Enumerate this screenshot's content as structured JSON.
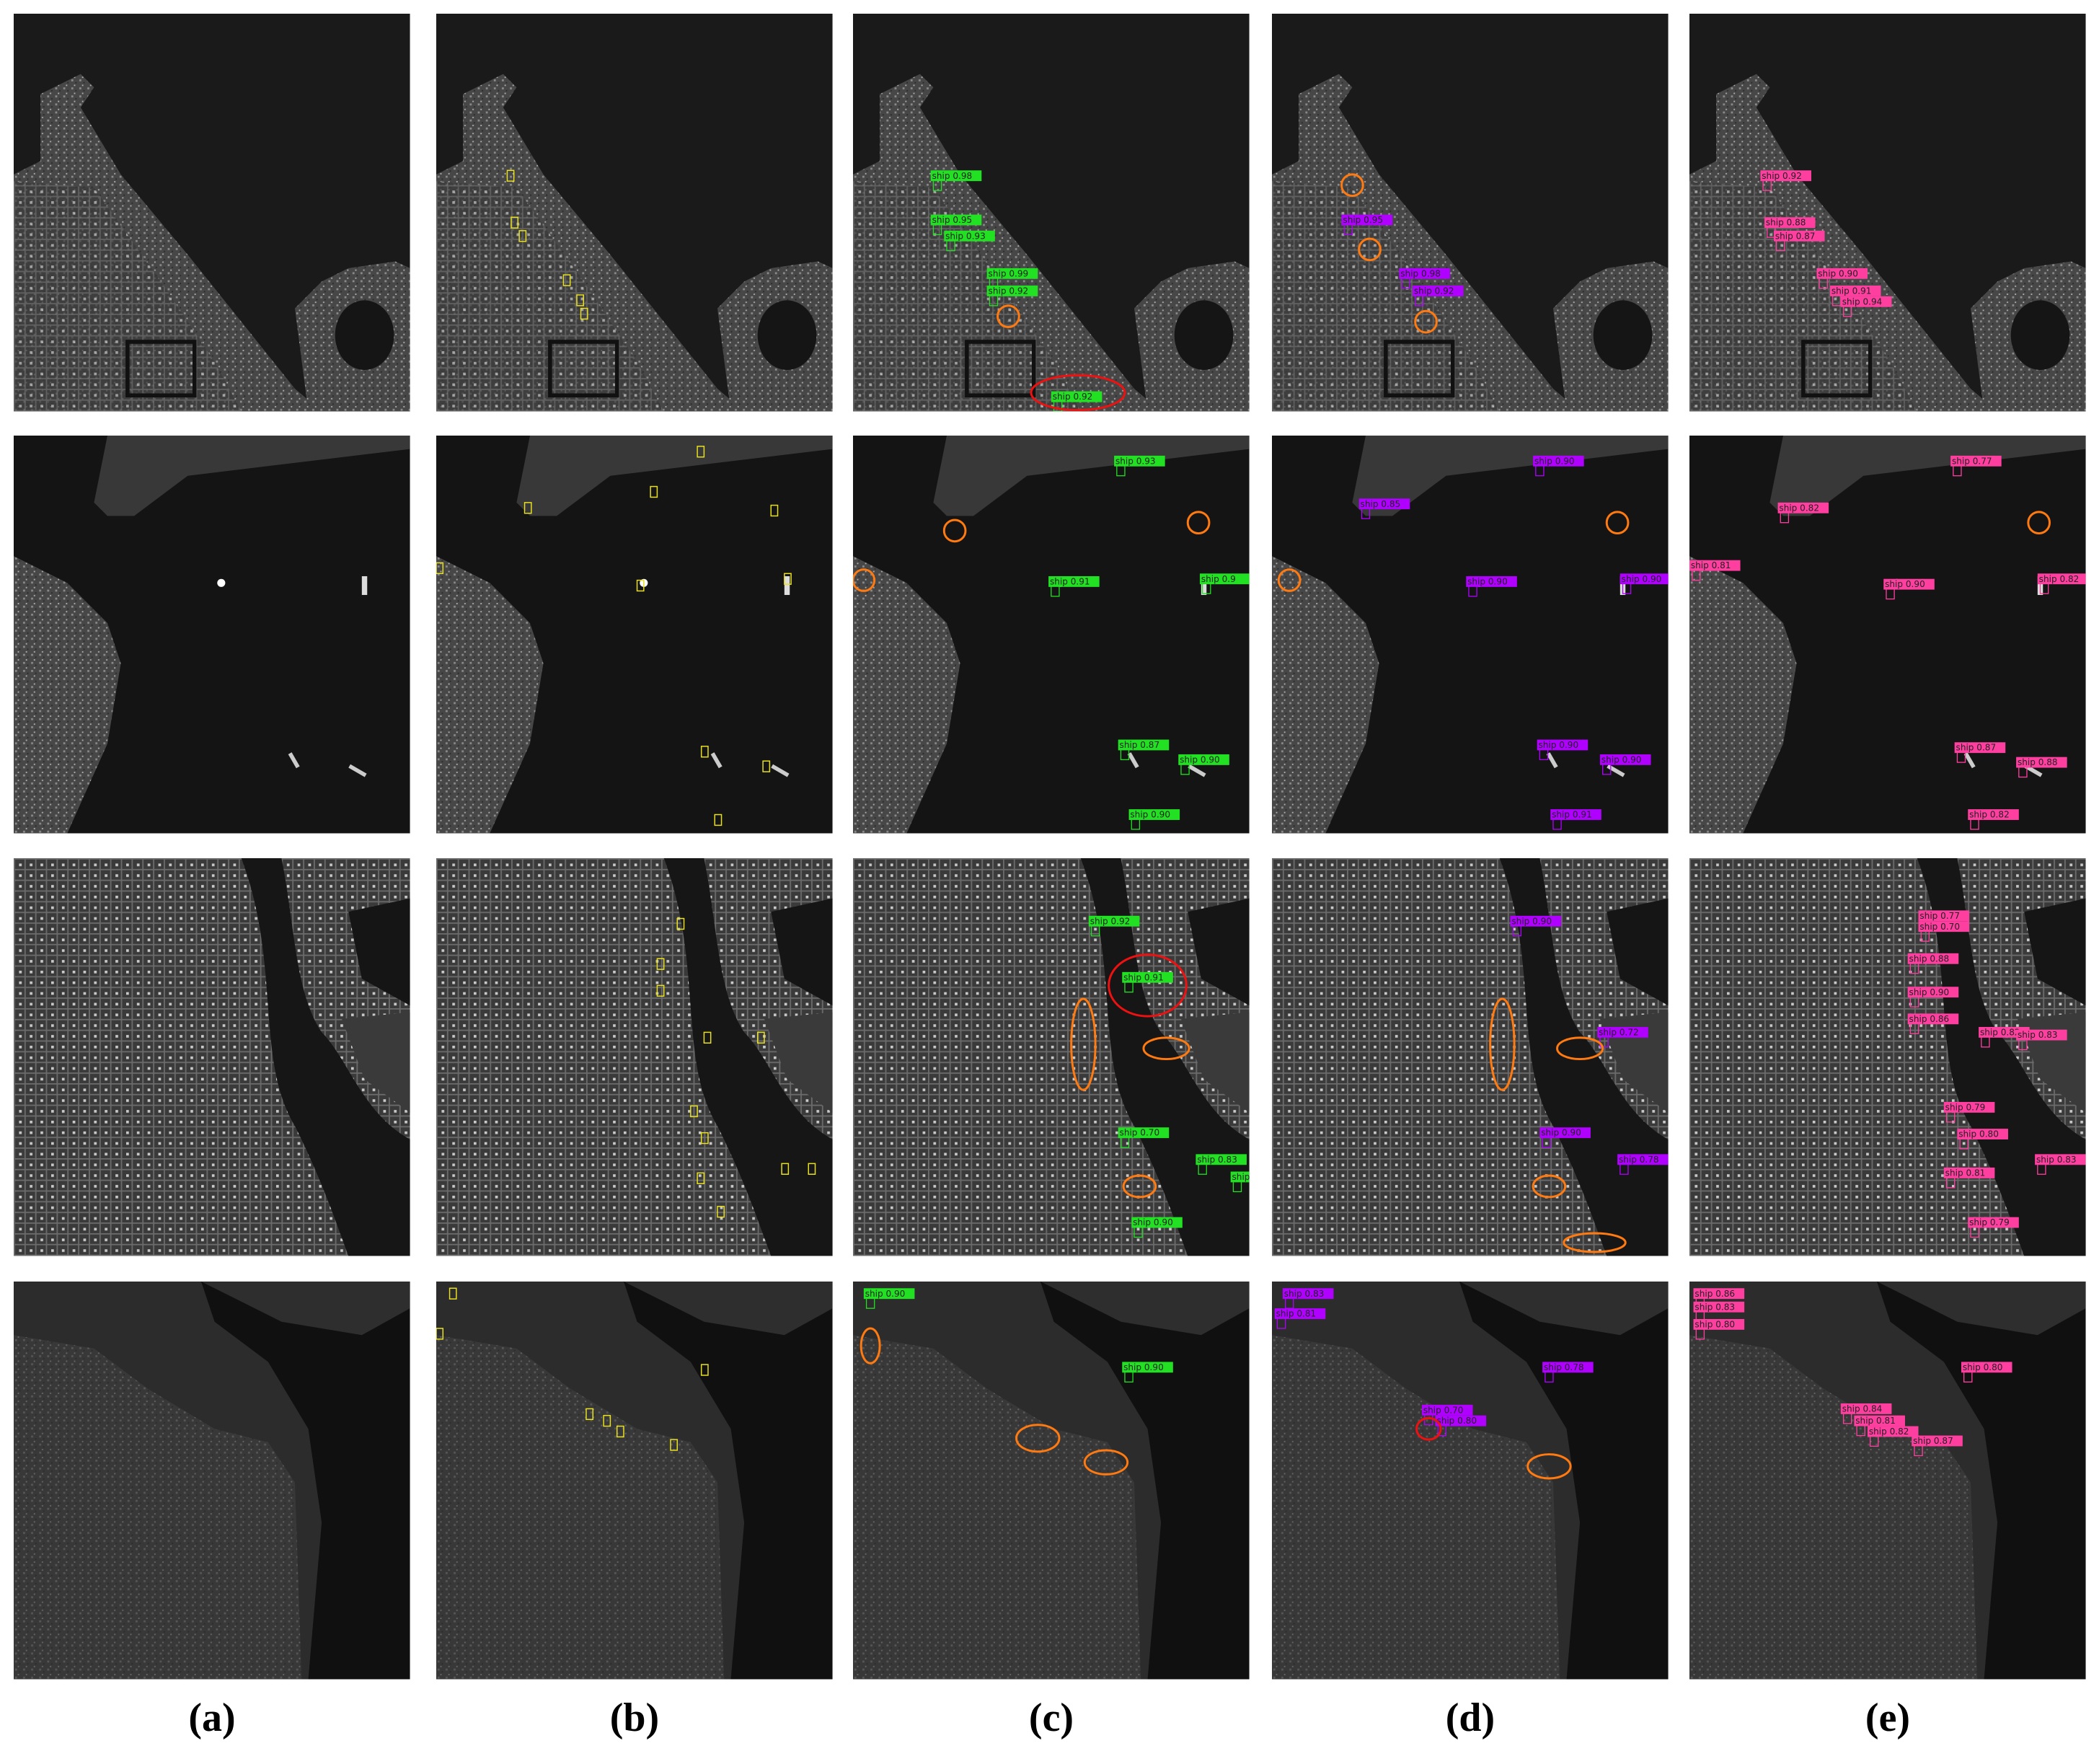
{
  "columns": [
    "(a)",
    "(b)",
    "(c)",
    "(d)",
    "(e)"
  ],
  "rows": [
    {
      "c": [
        "ship 0.98",
        "ship 0.95",
        "ship 0.93",
        "ship 0.99",
        "ship 0.92",
        "ship 0.92"
      ],
      "d": [
        "ship 0.95",
        "ship 0.98",
        "ship 0.92"
      ],
      "e": [
        "ship 0.92",
        "ship 0.88",
        "ship 0.87",
        "ship 0.90",
        "ship 0.91",
        "ship 0.94"
      ]
    },
    {
      "c": [
        "ship 0.93",
        "ship 0.91",
        "ship 0.9",
        "ship 0.87",
        "ship 0.90",
        "ship 0.90"
      ],
      "d": [
        "ship 0.90",
        "ship 0.85",
        "ship 0.90",
        "ship 0.90",
        "ship 0.90",
        "ship 0.90",
        "ship 0.91"
      ],
      "e": [
        "ship 0.77",
        "ship 0.82",
        "ship 0.81",
        "ship 0.90",
        "ship 0.82",
        "ship 0.87",
        "ship 0.88",
        "ship 0.82"
      ]
    },
    {
      "c": [
        "ship 0.92",
        "ship 0.91",
        "ship 0.70",
        "ship 0.83",
        "ship 0.7",
        "ship 0.90"
      ],
      "d": [
        "ship 0.90",
        "ship 0.72",
        "ship 0.90",
        "ship 0.78"
      ],
      "e": [
        "ship 0.77",
        "ship 0.70",
        "ship 0.88",
        "ship 0.90",
        "ship 0.86",
        "ship 0.82",
        "ship 0.83",
        "ship 0.79",
        "ship 0.80",
        "ship 0.81",
        "ship 0.79",
        "ship 0.83"
      ]
    },
    {
      "c": [
        "ship 0.90",
        "ship 0.90"
      ],
      "d": [
        "ship 0.83",
        "ship 0.81",
        "ship 0.78",
        "ship 0.70",
        "ship 0.80"
      ],
      "e": [
        "ship 0.86",
        "ship 0.83",
        "ship 0.80",
        "ship 0.80",
        "ship 0.84",
        "ship 0.81",
        "ship 0.82",
        "ship 0.87"
      ]
    }
  ]
}
